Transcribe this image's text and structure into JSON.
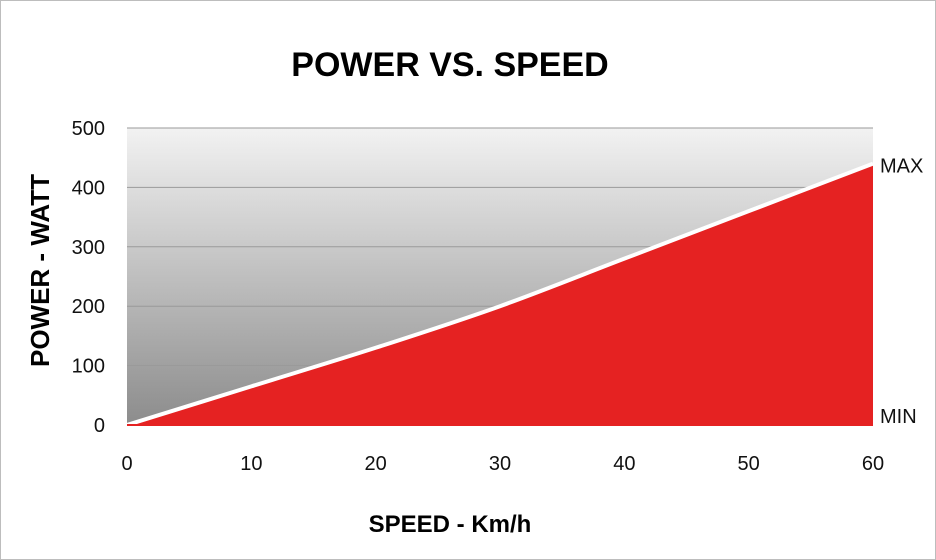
{
  "chart_data": {
    "type": "area",
    "title": "POWER VS. SPEED",
    "xlabel": "SPEED - Km/h",
    "ylabel": "POWER - WATT",
    "xlim": [
      0,
      60
    ],
    "ylim": [
      0,
      500
    ],
    "x_ticks": [
      "0",
      "10",
      "20",
      "30",
      "40",
      "50",
      "60"
    ],
    "y_ticks": [
      "0",
      "100",
      "200",
      "300",
      "400",
      "500"
    ],
    "x": [
      0,
      10,
      20,
      30,
      40,
      50,
      60
    ],
    "series": [
      {
        "values": [
          0,
          65,
          130,
          200,
          280,
          360,
          440
        ]
      }
    ],
    "annotations": {
      "max": "MAX",
      "min": "MIN"
    },
    "grid": true,
    "colors": {
      "fill": "#e52222",
      "line": "#ffffff",
      "bg_top": "#f2f2f2",
      "bg_bottom": "#8c8c8c",
      "grid": "#9a9a9a"
    }
  }
}
